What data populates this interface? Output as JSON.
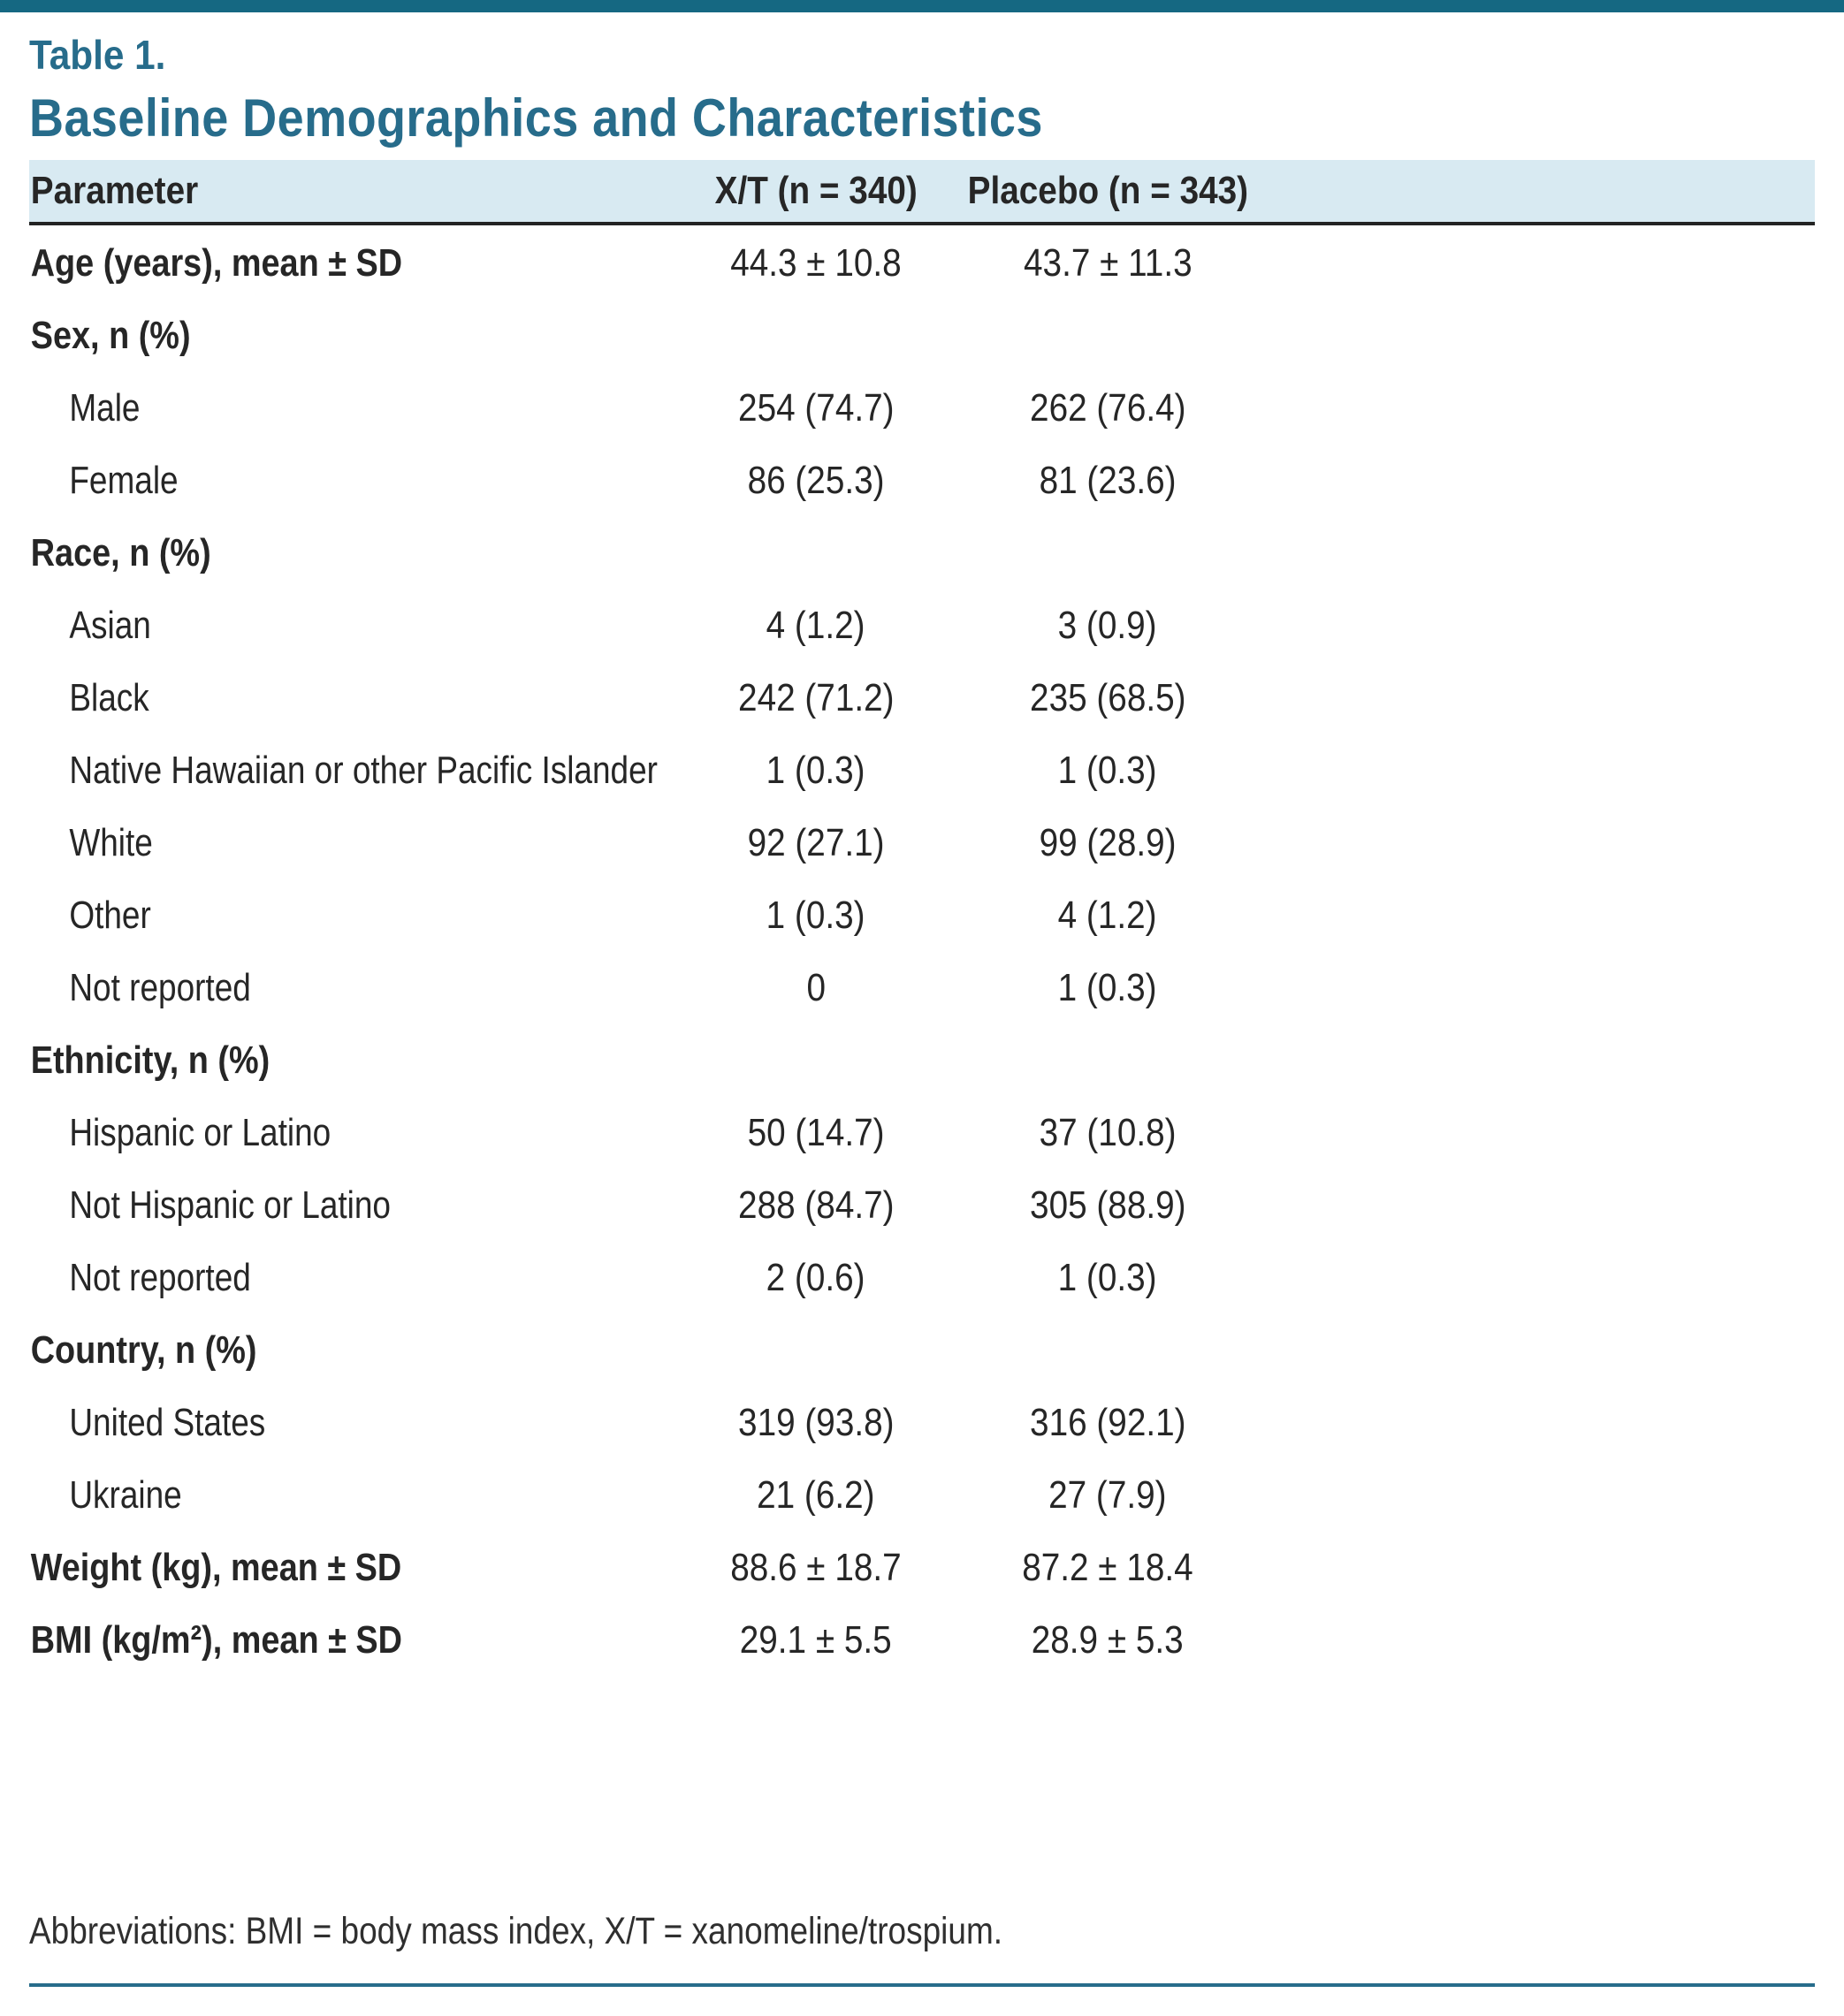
{
  "page": {
    "table_label": "Table 1.",
    "title": "Baseline Demographics and Characteristics",
    "footnote": "Abbreviations: BMI = body mass index, X/T = xanomeline/trospium."
  },
  "table": {
    "columns": [
      "Parameter",
      "X/T (n = 340)",
      "Placebo (n = 343)"
    ],
    "rows": [
      {
        "label": "Age (years), mean ± SD",
        "bold": true,
        "indent": false,
        "xt": "44.3 ± 10.8",
        "placebo": "43.7 ± 11.3"
      },
      {
        "label": "Sex, n (%)",
        "bold": true,
        "indent": false,
        "xt": "",
        "placebo": ""
      },
      {
        "label": "Male",
        "bold": false,
        "indent": true,
        "xt": "254 (74.7)",
        "placebo": "262 (76.4)"
      },
      {
        "label": "Female",
        "bold": false,
        "indent": true,
        "xt": "86 (25.3)",
        "placebo": "81 (23.6)"
      },
      {
        "label": "Race, n (%)",
        "bold": true,
        "indent": false,
        "xt": "",
        "placebo": ""
      },
      {
        "label": "Asian",
        "bold": false,
        "indent": true,
        "xt": "4 (1.2)",
        "placebo": "3 (0.9)"
      },
      {
        "label": "Black",
        "bold": false,
        "indent": true,
        "xt": "242 (71.2)",
        "placebo": "235 (68.5)"
      },
      {
        "label": "Native Hawaiian or other Pacific Islander",
        "bold": false,
        "indent": true,
        "xt": "1 (0.3)",
        "placebo": "1 (0.3)"
      },
      {
        "label": "White",
        "bold": false,
        "indent": true,
        "xt": "92 (27.1)",
        "placebo": "99 (28.9)"
      },
      {
        "label": "Other",
        "bold": false,
        "indent": true,
        "xt": "1 (0.3)",
        "placebo": "4 (1.2)"
      },
      {
        "label": "Not reported",
        "bold": false,
        "indent": true,
        "xt": "0",
        "placebo": "1 (0.3)"
      },
      {
        "label": "Ethnicity, n (%)",
        "bold": true,
        "indent": false,
        "xt": "",
        "placebo": ""
      },
      {
        "label": "Hispanic or Latino",
        "bold": false,
        "indent": true,
        "xt": "50 (14.7)",
        "placebo": "37 (10.8)"
      },
      {
        "label": "Not Hispanic or Latino",
        "bold": false,
        "indent": true,
        "xt": "288 (84.7)",
        "placebo": "305 (88.9)"
      },
      {
        "label": "Not reported",
        "bold": false,
        "indent": true,
        "xt": "2 (0.6)",
        "placebo": "1 (0.3)"
      },
      {
        "label": "Country, n (%)",
        "bold": true,
        "indent": false,
        "xt": "",
        "placebo": ""
      },
      {
        "label": "United States",
        "bold": false,
        "indent": true,
        "xt": "319 (93.8)",
        "placebo": "316 (92.1)"
      },
      {
        "label": "Ukraine",
        "bold": false,
        "indent": true,
        "xt": "21 (6.2)",
        "placebo": "27 (7.9)"
      },
      {
        "label": "Weight (kg), mean ± SD",
        "bold": true,
        "indent": false,
        "xt": "88.6 ± 18.7",
        "placebo": "87.2 ± 18.4"
      },
      {
        "label": "BMI (kg/m²), mean ± SD",
        "bold": true,
        "indent": false,
        "xt": "29.1 ± 5.5",
        "placebo": "28.9 ± 5.3"
      }
    ]
  },
  "colors": {
    "accent": "#276c8b",
    "accent_dark": "#156882",
    "header_bg": "#d8eaf2",
    "body_text": "#262626",
    "rule_dark": "#232323"
  }
}
